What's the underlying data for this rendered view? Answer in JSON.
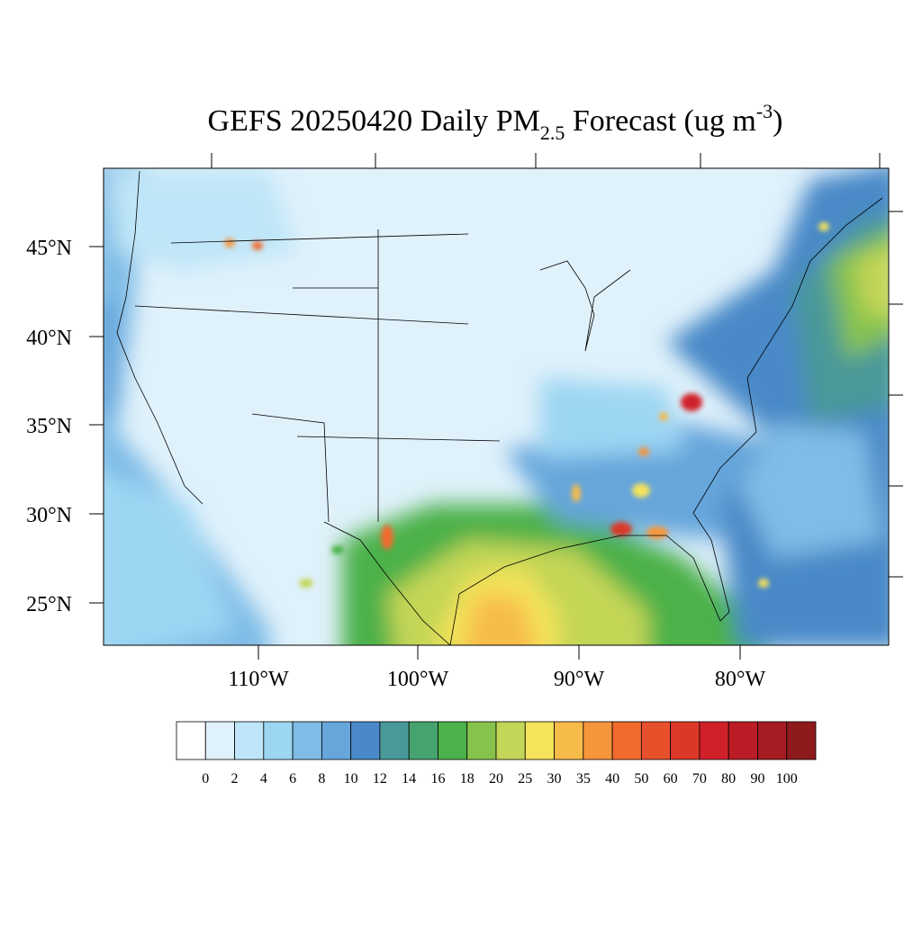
{
  "title": {
    "main": "GEFS 20250420 Daily PM",
    "sub": "2.5",
    "mid": " Forecast (ug m",
    "sup": "-3",
    "end": ")"
  },
  "lat_labels": [
    "45°N",
    "40°N",
    "35°N",
    "30°N",
    "25°N"
  ],
  "lon_labels": [
    "110°W",
    "100°W",
    "90°W",
    "80°W"
  ],
  "colorbar": {
    "levels": [
      0,
      2,
      4,
      6,
      8,
      10,
      12,
      14,
      16,
      18,
      20,
      25,
      30,
      35,
      40,
      50,
      60,
      70,
      80,
      90,
      100
    ],
    "colors": [
      "#ffffff",
      "#dff1fb",
      "#bfe6f8",
      "#9dd6f3",
      "#7fbce6",
      "#66a6db",
      "#4a89c8",
      "#4a9999",
      "#46a26e",
      "#4cb14a",
      "#86c34d",
      "#c4d657",
      "#f5e35a",
      "#f7bb4a",
      "#f6953b",
      "#f26b2d",
      "#e8502b",
      "#dc3828",
      "#d02029",
      "#bb1c25",
      "#a61c22",
      "#8e1a1c"
    ]
  }
}
